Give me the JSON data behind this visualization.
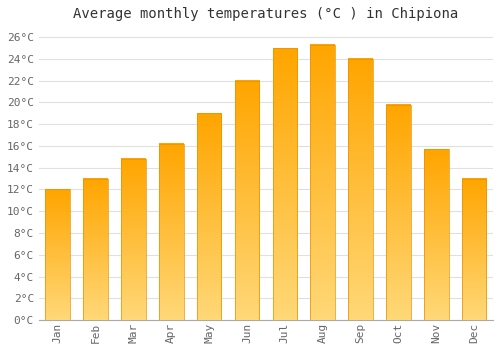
{
  "title": "Average monthly temperatures (°C ) in Chipiona",
  "months": [
    "Jan",
    "Feb",
    "Mar",
    "Apr",
    "May",
    "Jun",
    "Jul",
    "Aug",
    "Sep",
    "Oct",
    "Nov",
    "Dec"
  ],
  "temperatures": [
    12.0,
    13.0,
    14.8,
    16.2,
    19.0,
    22.0,
    25.0,
    25.3,
    24.0,
    19.8,
    15.7,
    13.0
  ],
  "bar_color_top": "#FFA500",
  "bar_color_bottom": "#FFD060",
  "bar_edge_color": "#E89000",
  "background_color": "#FFFFFF",
  "grid_color": "#E0E0E0",
  "text_color": "#666666",
  "ylim": [
    0,
    27
  ],
  "yticks": [
    0,
    2,
    4,
    6,
    8,
    10,
    12,
    14,
    16,
    18,
    20,
    22,
    24,
    26
  ],
  "title_fontsize": 10,
  "tick_fontsize": 8,
  "bar_width": 0.65
}
